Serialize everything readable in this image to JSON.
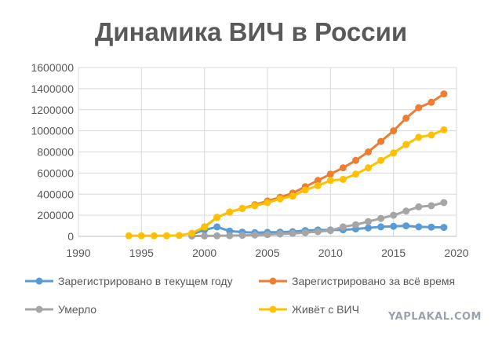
{
  "chart_data": {
    "type": "line",
    "title": "Динамика ВИЧ в России",
    "xlabel": "",
    "ylabel": "",
    "xlim": [
      1990,
      2020
    ],
    "ylim": [
      0,
      1600000
    ],
    "x_ticks": [
      "1990",
      "1995",
      "2000",
      "2005",
      "2010",
      "2015",
      "2020"
    ],
    "y_ticks": [
      "0",
      "200000",
      "400000",
      "600000",
      "800000",
      "1000000",
      "1200000",
      "1400000",
      "1600000"
    ],
    "grid": "vertical and horizontal",
    "legend_position": "bottom",
    "x": [
      1994,
      1995,
      1996,
      1997,
      1998,
      1999,
      2000,
      2001,
      2002,
      2003,
      2004,
      2005,
      2006,
      2007,
      2008,
      2009,
      2010,
      2011,
      2012,
      2013,
      2014,
      2015,
      2016,
      2017,
      2018,
      2019
    ],
    "series": [
      {
        "name": "Зарегистрировано в текущем году",
        "color": "#5b9bd5",
        "values": [
          null,
          null,
          null,
          null,
          null,
          20000,
          60000,
          90000,
          50000,
          40000,
          35000,
          38000,
          40000,
          45000,
          55000,
          60000,
          60000,
          62000,
          70000,
          80000,
          90000,
          95000,
          100000,
          90000,
          88000,
          85000
        ]
      },
      {
        "name": "Зарегистрировано за всё время",
        "color": "#ed7d31",
        "values": [
          null,
          null,
          null,
          null,
          null,
          null,
          90000,
          180000,
          230000,
          265000,
          300000,
          335000,
          370000,
          410000,
          470000,
          530000,
          590000,
          650000,
          720000,
          800000,
          900000,
          1000000,
          1120000,
          1220000,
          1270000,
          1350000
        ]
      },
      {
        "name": "Умерло",
        "color": "#a5a5a5",
        "values": [
          null,
          null,
          null,
          null,
          null,
          3000,
          4000,
          5000,
          7000,
          10000,
          13000,
          17000,
          22000,
          28000,
          35000,
          45000,
          55000,
          90000,
          110000,
          140000,
          170000,
          200000,
          240000,
          280000,
          290000,
          320000
        ]
      },
      {
        "name": "Живёт с ВИЧ",
        "color": "#ffc000",
        "values": [
          5000,
          5000,
          5000,
          5000,
          8000,
          30000,
          90000,
          180000,
          230000,
          265000,
          290000,
          320000,
          355000,
          380000,
          440000,
          480000,
          530000,
          540000,
          590000,
          650000,
          720000,
          790000,
          870000,
          940000,
          960000,
          1010000
        ]
      }
    ]
  },
  "legend": [
    {
      "label": "Зарегистрировано в текущем году",
      "color": "#5b9bd5"
    },
    {
      "label": "Зарегистрировано за всё время",
      "color": "#ed7d31"
    },
    {
      "label": "Умерло",
      "color": "#a5a5a5"
    },
    {
      "label": "Живёт с ВИЧ",
      "color": "#ffc000"
    }
  ],
  "watermark": "YAPLAKAL.COM"
}
